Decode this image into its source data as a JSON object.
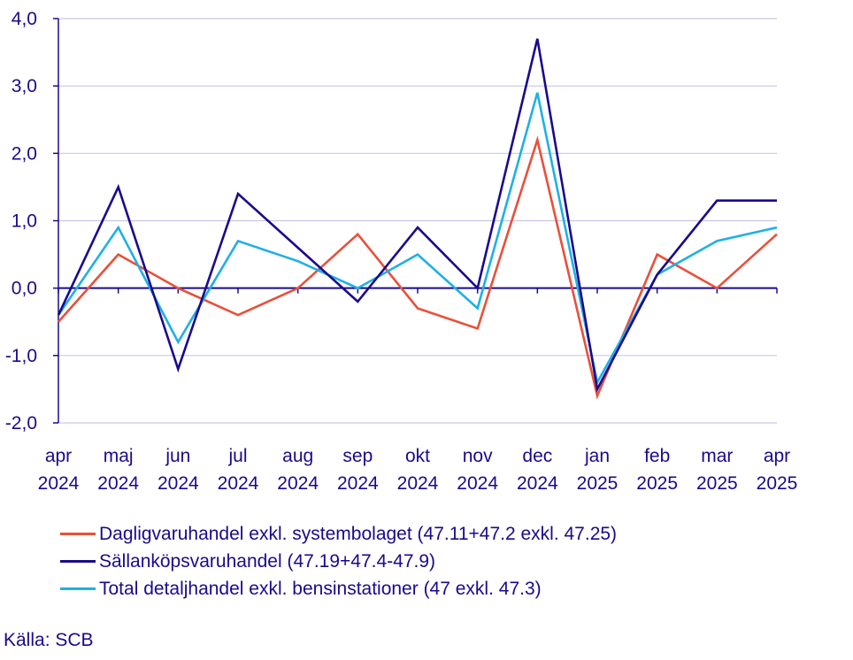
{
  "chart_data": {
    "type": "line",
    "title": "",
    "xlabel": "",
    "ylabel": "",
    "ylim": [
      -2.0,
      4.0
    ],
    "yticks": [
      "-2,0",
      "-1,0",
      "0,0",
      "1,0",
      "2,0",
      "3,0",
      "4,0"
    ],
    "categories": [
      [
        "apr",
        "2024"
      ],
      [
        "maj",
        "2024"
      ],
      [
        "jun",
        "2024"
      ],
      [
        "jul",
        "2024"
      ],
      [
        "aug",
        "2024"
      ],
      [
        "sep",
        "2024"
      ],
      [
        "okt",
        "2024"
      ],
      [
        "nov",
        "2024"
      ],
      [
        "dec",
        "2024"
      ],
      [
        "jan",
        "2025"
      ],
      [
        "feb",
        "2025"
      ],
      [
        "mar",
        "2025"
      ],
      [
        "apr",
        "2025"
      ]
    ],
    "grid": true,
    "legend_position": "bottom",
    "series": [
      {
        "name": "Dagligvaruhandel exkl. systembolaget (47.11+47.2 exkl. 47.25)",
        "color": "#e8503a",
        "values": [
          -0.5,
          0.5,
          0.0,
          -0.4,
          0.0,
          0.8,
          -0.3,
          -0.6,
          2.2,
          -1.6,
          0.5,
          0.0,
          0.8
        ]
      },
      {
        "name": "Sällanköpsvaruhandel (47.19+47.4-47.9)",
        "color": "#1a0a8c",
        "values": [
          -0.4,
          1.5,
          -1.2,
          1.4,
          0.6,
          -0.2,
          0.9,
          0.0,
          3.7,
          -1.5,
          0.2,
          1.3,
          1.3
        ]
      },
      {
        "name": "Total detaljhandel exkl. bensinstationer (47 exkl. 47.3)",
        "color": "#1fb0e6",
        "values": [
          -0.4,
          0.9,
          -0.8,
          0.7,
          0.4,
          0.0,
          0.5,
          -0.3,
          2.9,
          -1.4,
          0.2,
          0.7,
          0.9
        ]
      }
    ]
  },
  "source": "Källa: SCB"
}
